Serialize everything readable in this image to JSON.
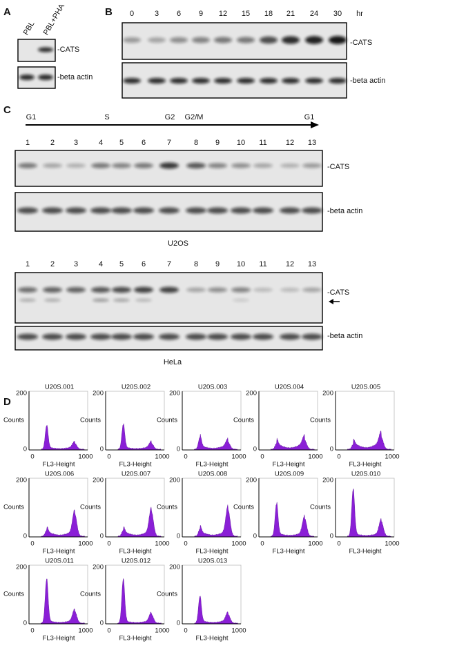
{
  "panel_a": {
    "label": "A",
    "lanes": [
      "PBL",
      "PBL+PHA"
    ],
    "bands": [
      "-CATS",
      "-beta actin"
    ]
  },
  "panel_b": {
    "label": "B",
    "timepoints": [
      0,
      3,
      6,
      9,
      12,
      15,
      18,
      21,
      24,
      30
    ],
    "unit": "hr",
    "bands": [
      "-CATS",
      "-beta actin"
    ]
  },
  "panel_c": {
    "label": "C",
    "phases": [
      "G1",
      "S",
      "G2",
      "G2/M",
      "G1"
    ],
    "blots": [
      {
        "lanes": [
          1,
          2,
          3,
          4,
          5,
          6,
          7,
          8,
          9,
          10,
          11,
          12,
          13
        ],
        "bands": [
          "-CATS",
          "-beta actin"
        ],
        "cell_line": "U2OS"
      },
      {
        "lanes": [
          1,
          2,
          3,
          4,
          5,
          6,
          7,
          8,
          9,
          10,
          11,
          12,
          13
        ],
        "bands": [
          "-CATS",
          "-beta actin"
        ],
        "cell_line": "HeLa"
      }
    ]
  },
  "panel_d": {
    "label": "D",
    "ylabel": "Counts",
    "xlabel": "FL3-Height",
    "yticks": [
      0,
      200
    ],
    "xticks": [
      0,
      1000
    ],
    "plots": [
      {
        "title": "U20S.001"
      },
      {
        "title": "U20S.002"
      },
      {
        "title": "U20S.003"
      },
      {
        "title": "U20S.004"
      },
      {
        "title": "U20S.005"
      },
      {
        "title": "U20S.006"
      },
      {
        "title": "U20S.007"
      },
      {
        "title": "U20S.008"
      },
      {
        "title": "U20S.009"
      },
      {
        "title": "U20S.010"
      },
      {
        "title": "U20S.011"
      },
      {
        "title": "U20S.012"
      },
      {
        "title": "U20S.013"
      }
    ]
  }
}
